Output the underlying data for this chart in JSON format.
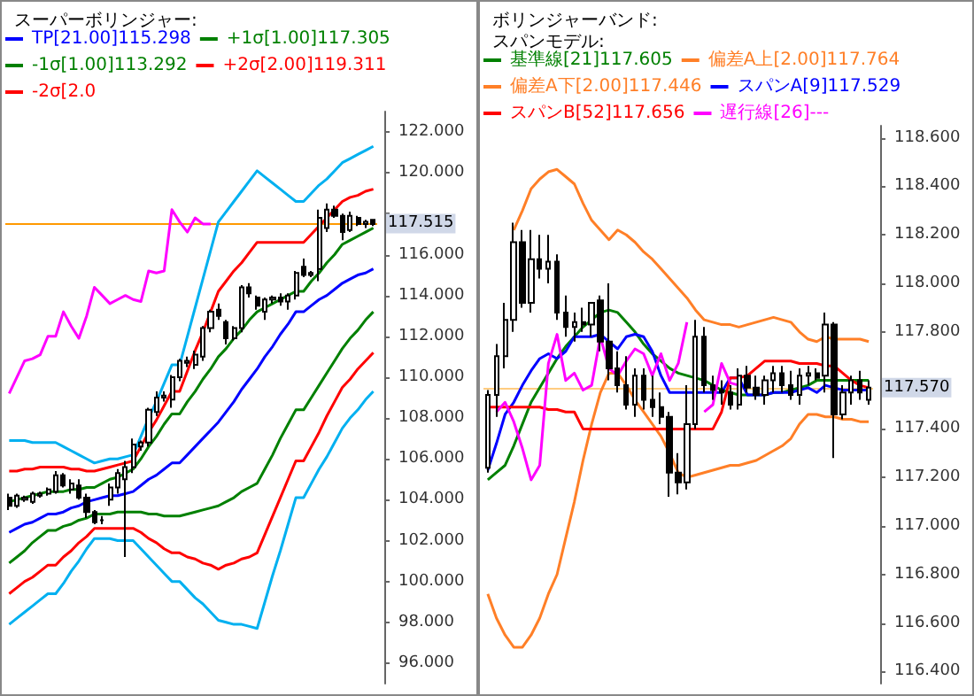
{
  "chart_data": [
    {
      "type": "candlestick",
      "title": "スーパーボリンジャー:",
      "categories": [
        null,
        null,
        null,
        null,
        null,
        null,
        null,
        null,
        null,
        null,
        null,
        null,
        null,
        null,
        null,
        null,
        null,
        null,
        null,
        null,
        null,
        null,
        null,
        null,
        null,
        null,
        null,
        null,
        null,
        null,
        null,
        null,
        null,
        null,
        null,
        null,
        null,
        null,
        null,
        null,
        null,
        null,
        null,
        null,
        null,
        null,
        null,
        null
      ],
      "ohlc": [
        [
          104.1,
          104.3,
          103.5,
          103.7
        ],
        [
          103.7,
          104.3,
          103.6,
          104.2
        ],
        [
          104.0,
          104.2,
          103.9,
          104.1
        ],
        [
          103.9,
          104.4,
          103.8,
          104.3
        ],
        [
          104.2,
          104.4,
          104.1,
          104.3
        ],
        [
          104.3,
          104.6,
          104.2,
          104.5
        ],
        [
          104.4,
          105.4,
          104.3,
          105.2
        ],
        [
          105.2,
          105.3,
          104.6,
          104.7
        ],
        [
          104.5,
          105.0,
          104.3,
          104.8
        ],
        [
          104.7,
          105.0,
          104.0,
          104.1
        ],
        [
          104.1,
          104.3,
          103.1,
          103.4
        ],
        [
          103.4,
          103.5,
          102.8,
          102.9
        ],
        [
          103.0,
          103.2,
          102.8,
          103.0
        ],
        [
          104.0,
          104.8,
          103.7,
          104.6
        ],
        [
          104.6,
          105.5,
          104.3,
          105.3
        ],
        [
          105.0,
          105.9,
          101.2,
          105.6
        ],
        [
          105.6,
          107.0,
          105.3,
          106.7
        ],
        [
          106.6,
          106.9,
          106.4,
          106.8
        ],
        [
          106.8,
          108.5,
          106.6,
          108.4
        ],
        [
          108.3,
          109.3,
          108.1,
          109.0
        ],
        [
          109.0,
          109.3,
          108.8,
          109.1
        ],
        [
          108.9,
          110.1,
          108.5,
          110.0
        ],
        [
          110.0,
          110.9,
          109.8,
          110.8
        ],
        [
          110.7,
          111.0,
          110.5,
          110.8
        ],
        [
          110.6,
          111.3,
          110.4,
          111.1
        ],
        [
          111.0,
          112.5,
          110.8,
          112.4
        ],
        [
          112.4,
          113.3,
          112.2,
          113.2
        ],
        [
          113.3,
          113.6,
          112.8,
          113.0
        ],
        [
          112.7,
          112.8,
          111.6,
          111.9
        ],
        [
          111.9,
          112.5,
          111.8,
          112.4
        ],
        [
          112.4,
          114.5,
          112.2,
          114.4
        ],
        [
          114.4,
          114.6,
          113.9,
          114.1
        ],
        [
          113.9,
          114.0,
          113.3,
          113.5
        ],
        [
          113.2,
          113.9,
          112.8,
          113.8
        ],
        [
          113.8,
          114.0,
          113.6,
          113.9
        ],
        [
          113.9,
          114.1,
          113.5,
          113.7
        ],
        [
          113.7,
          114.1,
          113.3,
          114.0
        ],
        [
          114.0,
          115.2,
          113.8,
          115.1
        ],
        [
          115.4,
          115.8,
          114.9,
          115.0
        ],
        [
          115.0,
          115.2,
          114.9,
          115.1
        ],
        [
          115.3,
          118.2,
          114.7,
          117.8
        ],
        [
          117.3,
          118.5,
          117.1,
          118.2
        ],
        [
          118.2,
          118.4,
          117.8,
          117.9
        ],
        [
          117.9,
          118.0,
          116.7,
          117.1
        ],
        [
          117.2,
          118.1,
          117.1,
          117.9
        ],
        [
          117.8,
          117.9,
          117.4,
          117.5
        ],
        [
          117.5,
          117.7,
          117.3,
          117.6
        ],
        [
          117.7,
          117.7,
          117.4,
          117.5
        ]
      ],
      "series": [
        {
          "type": "line",
          "name": "TP[21.00]115.298",
          "color": "#0000ff",
          "values": [
            102.4,
            102.6,
            102.8,
            102.9,
            103.1,
            103.3,
            103.3,
            103.4,
            103.6,
            103.7,
            103.9,
            104.0,
            104.1,
            104.2,
            104.2,
            104.3,
            104.4,
            104.7,
            105.0,
            105.2,
            105.5,
            105.8,
            105.8,
            106.2,
            106.6,
            107.0,
            107.4,
            107.8,
            108.3,
            108.8,
            109.4,
            109.9,
            110.4,
            111.0,
            111.5,
            112.1,
            112.6,
            113.2,
            113.2,
            113.5,
            113.8,
            114.0,
            114.3,
            114.6,
            114.8,
            115.0,
            115.1,
            115.3
          ]
        },
        {
          "type": "line",
          "name": "+1σ[1.00]117.305",
          "color": "#008000",
          "values": [
            103.9,
            104.0,
            104.1,
            104.2,
            104.3,
            104.4,
            104.4,
            104.4,
            104.5,
            104.5,
            104.6,
            104.6,
            104.8,
            105.0,
            105.1,
            105.3,
            105.5,
            106.0,
            106.6,
            107.1,
            107.7,
            108.2,
            108.2,
            108.8,
            109.3,
            109.9,
            110.4,
            111.0,
            111.4,
            111.9,
            112.3,
            112.8,
            113.2,
            113.4,
            113.6,
            113.8,
            114.0,
            114.2,
            114.2,
            114.7,
            115.1,
            115.6,
            116.0,
            116.5,
            116.7,
            116.9,
            117.1,
            117.3
          ]
        },
        {
          "type": "line",
          "name": "-1σ[1.00]113.292",
          "color": "#008000",
          "values": [
            100.9,
            101.2,
            101.5,
            101.9,
            102.2,
            102.5,
            102.5,
            102.7,
            102.8,
            103.0,
            103.1,
            103.3,
            103.3,
            103.3,
            103.4,
            103.4,
            103.4,
            103.4,
            103.3,
            103.3,
            103.2,
            103.2,
            103.2,
            103.3,
            103.4,
            103.5,
            103.6,
            103.7,
            103.9,
            104.1,
            104.4,
            104.6,
            104.8,
            105.5,
            106.2,
            107.0,
            107.7,
            108.4,
            108.4,
            109.0,
            109.6,
            110.2,
            110.8,
            111.4,
            111.9,
            112.3,
            112.8,
            113.2
          ]
        },
        {
          "type": "line",
          "name": "+2σ[2.00]119.311",
          "color": "#ff0000",
          "values": [
            105.4,
            105.4,
            105.5,
            105.5,
            105.6,
            105.6,
            105.6,
            105.6,
            105.5,
            105.5,
            105.4,
            105.4,
            105.5,
            105.6,
            105.7,
            105.8,
            105.9,
            106.6,
            107.3,
            107.9,
            108.6,
            109.3,
            109.3,
            110.3,
            111.3,
            112.2,
            113.2,
            114.2,
            114.7,
            115.2,
            115.6,
            116.1,
            116.6,
            116.6,
            116.6,
            116.6,
            116.6,
            116.6,
            116.6,
            117.0,
            117.4,
            117.8,
            118.2,
            118.6,
            118.8,
            118.9,
            119.1,
            119.2
          ]
        },
        {
          "type": "line",
          "name": "-2σ[2.0",
          "color": "#ff0000",
          "values": [
            99.4,
            99.7,
            100.0,
            100.2,
            100.5,
            100.8,
            100.8,
            101.2,
            101.5,
            101.9,
            102.2,
            102.6,
            102.6,
            102.6,
            102.6,
            102.6,
            102.6,
            102.4,
            102.1,
            101.9,
            101.6,
            101.4,
            101.4,
            101.2,
            101.1,
            100.9,
            100.8,
            100.6,
            100.8,
            100.9,
            101.1,
            101.2,
            101.4,
            102.3,
            103.2,
            104.1,
            105.0,
            105.9,
            105.9,
            106.6,
            107.3,
            108.1,
            108.8,
            109.5,
            109.9,
            110.4,
            110.8,
            111.2
          ]
        },
        {
          "type": "line",
          "color": "#00b0f0",
          "values": [
            106.9,
            106.9,
            106.9,
            106.8,
            106.8,
            106.8,
            106.8,
            106.6,
            106.4,
            106.2,
            106.0,
            105.8,
            105.9,
            106.0,
            106.0,
            106.1,
            106.2,
            107.1,
            108.0,
            108.8,
            109.7,
            110.6,
            110.6,
            112.0,
            113.4,
            114.8,
            116.2,
            117.6,
            118.1,
            118.6,
            119.1,
            119.6,
            120.1,
            119.8,
            119.5,
            119.2,
            118.9,
            118.6,
            118.6,
            119.0,
            119.4,
            119.7,
            120.1,
            120.5,
            120.7,
            120.9,
            121.1,
            121.3
          ]
        },
        {
          "type": "line",
          "color": "#00b0f0",
          "values": [
            97.9,
            98.2,
            98.5,
            98.8,
            99.1,
            99.4,
            99.4,
            99.9,
            100.5,
            101.0,
            101.6,
            102.1,
            102.1,
            102.1,
            102.0,
            102.0,
            102.0,
            101.6,
            101.2,
            100.8,
            100.4,
            100.0,
            100.0,
            99.6,
            99.2,
            98.9,
            98.5,
            98.1,
            98.0,
            97.9,
            97.9,
            97.8,
            97.7,
            99.0,
            100.3,
            101.5,
            102.8,
            104.1,
            104.1,
            104.8,
            105.5,
            106.1,
            106.8,
            107.5,
            108.0,
            108.4,
            108.9,
            109.3
          ]
        },
        {
          "type": "line",
          "color": "#ff00ff",
          "values": [
            109.2,
            110.0,
            110.8,
            110.9,
            111.1,
            112.0,
            112.0,
            113.2,
            112.5,
            111.9,
            113.0,
            114.4,
            114.0,
            113.6,
            113.8,
            114.0,
            113.8,
            113.7,
            115.2,
            115.1,
            115.2,
            118.2,
            117.6,
            117.1,
            117.8,
            117.5,
            117.5,
            null,
            null,
            null,
            null,
            null,
            null,
            null,
            null,
            null,
            null,
            null,
            null,
            null,
            null,
            null,
            null,
            null,
            null,
            null,
            null,
            null
          ]
        }
      ],
      "ylim": [
        95,
        123
      ],
      "yticks": [
        {
          "value": 96,
          "label": "96.000"
        },
        {
          "value": 98,
          "label": "98.000"
        },
        {
          "value": 100,
          "label": "100.000"
        },
        {
          "value": 102,
          "label": "102.000"
        },
        {
          "value": 104,
          "label": "104.000"
        },
        {
          "value": 106,
          "label": "106.000"
        },
        {
          "value": 108,
          "label": "108.000"
        },
        {
          "value": 110,
          "label": "110.000"
        },
        {
          "value": 112,
          "label": "112.000"
        },
        {
          "value": 114,
          "label": "114.000"
        },
        {
          "value": 116,
          "label": "116.000"
        },
        {
          "value": 118,
          "label": null
        },
        {
          "value": 120,
          "label": "120.000"
        },
        {
          "value": 122,
          "label": "122.000"
        }
      ],
      "ref_lines": [
        {
          "axis": "y",
          "value": 117.515,
          "label": "117.515",
          "color": "#ff9900"
        }
      ],
      "legend": "top",
      "tick_labels": "y",
      "line_style": "solid"
    },
    {
      "type": "candlestick",
      "title": "ボリンジャーバンド:",
      "subtitle": "スパンモデル:",
      "categories": [
        null,
        null,
        null,
        null,
        null,
        null,
        null,
        null,
        null,
        null,
        null,
        null,
        null,
        null,
        null,
        null,
        null,
        null,
        null,
        null,
        null,
        null,
        null,
        null,
        null,
        null,
        null,
        null,
        null,
        null,
        null,
        null,
        null,
        null,
        null,
        null,
        null,
        null,
        null,
        null,
        null,
        null,
        null,
        null,
        null
      ],
      "ohlc": [
        [
          117.24,
          117.56,
          117.22,
          117.54
        ],
        [
          117.54,
          117.75,
          117.45,
          117.7
        ],
        [
          117.7,
          117.92,
          117.65,
          117.85
        ],
        [
          117.85,
          118.25,
          117.8,
          118.17
        ],
        [
          118.17,
          118.22,
          117.9,
          117.92
        ],
        [
          117.92,
          118.22,
          117.88,
          118.1
        ],
        [
          118.1,
          118.2,
          118.02,
          118.06
        ],
        [
          118.06,
          118.2,
          118.0,
          118.09
        ],
        [
          118.09,
          118.12,
          117.85,
          117.88
        ],
        [
          117.88,
          117.95,
          117.78,
          117.82
        ],
        [
          117.82,
          117.88,
          117.76,
          117.84
        ],
        [
          117.84,
          117.9,
          117.8,
          117.83
        ],
        [
          117.83,
          117.92,
          117.78,
          117.92
        ],
        [
          117.93,
          117.95,
          117.72,
          117.76
        ],
        [
          117.76,
          118.0,
          117.6,
          117.65
        ],
        [
          117.65,
          117.72,
          117.55,
          117.58
        ],
        [
          117.58,
          117.7,
          117.48,
          117.5
        ],
        [
          117.5,
          117.65,
          117.45,
          117.62
        ],
        [
          117.62,
          117.65,
          117.48,
          117.52
        ],
        [
          117.52,
          117.62,
          117.45,
          117.49
        ],
        [
          117.49,
          117.55,
          117.42,
          117.45
        ],
        [
          117.45,
          117.47,
          117.12,
          117.22
        ],
        [
          117.22,
          117.3,
          117.13,
          117.18
        ],
        [
          117.18,
          117.58,
          117.15,
          117.42
        ],
        [
          117.42,
          117.85,
          117.4,
          117.78
        ],
        [
          117.78,
          117.82,
          117.55,
          117.58
        ],
        [
          117.58,
          117.62,
          117.52,
          117.56
        ],
        [
          117.56,
          117.6,
          117.5,
          117.55
        ],
        [
          117.55,
          117.58,
          117.48,
          117.5
        ],
        [
          117.5,
          117.65,
          117.48,
          117.62
        ],
        [
          117.62,
          117.66,
          117.55,
          117.57
        ],
        [
          117.57,
          117.62,
          117.52,
          117.54
        ],
        [
          117.54,
          117.62,
          117.5,
          117.6
        ],
        [
          117.6,
          117.66,
          117.55,
          117.63
        ],
        [
          117.63,
          117.66,
          117.55,
          117.58
        ],
        [
          117.58,
          117.64,
          117.52,
          117.54
        ],
        [
          117.54,
          117.65,
          117.5,
          117.62
        ],
        [
          117.62,
          117.66,
          117.58,
          117.63
        ],
        [
          117.63,
          117.65,
          117.6,
          117.61
        ],
        [
          117.62,
          117.88,
          117.55,
          117.83
        ],
        [
          117.83,
          117.84,
          117.28,
          117.46
        ],
        [
          117.46,
          117.58,
          117.44,
          117.55
        ],
        [
          117.55,
          117.62,
          117.5,
          117.6
        ],
        [
          117.6,
          117.64,
          117.52,
          117.55
        ],
        [
          117.52,
          117.6,
          117.5,
          117.57
        ]
      ],
      "series": [
        {
          "type": "line",
          "name": "基準線[21]117.605",
          "color": "#008000",
          "values": [
            117.19,
            117.22,
            117.25,
            117.33,
            117.42,
            117.51,
            117.57,
            117.63,
            117.69,
            117.74,
            117.78,
            117.82,
            117.85,
            117.88,
            117.89,
            117.88,
            117.84,
            117.8,
            117.75,
            117.71,
            117.68,
            117.65,
            117.63,
            117.62,
            117.61,
            117.6,
            117.58,
            117.56,
            117.55,
            117.54,
            117.54,
            117.54,
            117.54,
            117.55,
            117.55,
            117.56,
            117.57,
            117.58,
            117.6,
            117.6,
            117.6,
            117.6,
            117.6,
            117.6,
            117.6
          ]
        },
        {
          "type": "line",
          "name": "偏差A上[2.00]117.764",
          "color": "#ff7f27",
          "values": [
            null,
            null,
            null,
            118.22,
            118.3,
            118.39,
            118.43,
            118.46,
            118.47,
            118.44,
            118.41,
            118.33,
            118.26,
            118.22,
            118.18,
            118.22,
            118.2,
            118.17,
            118.13,
            118.1,
            118.06,
            118.02,
            117.98,
            117.94,
            117.89,
            117.85,
            117.84,
            117.83,
            117.83,
            117.82,
            117.83,
            117.84,
            117.85,
            117.86,
            117.85,
            117.84,
            117.8,
            117.77,
            117.76,
            117.78,
            117.77,
            117.77,
            117.77,
            117.77,
            117.76
          ]
        },
        {
          "type": "line",
          "name": "偏差A下[2.00]117.446",
          "color": "#ff7f27",
          "values": [
            116.72,
            116.62,
            116.55,
            116.5,
            116.5,
            116.55,
            116.62,
            116.72,
            116.8,
            116.95,
            117.1,
            117.27,
            117.42,
            117.55,
            117.63,
            117.63,
            117.58,
            117.52,
            117.47,
            117.42,
            117.37,
            117.3,
            117.22,
            117.2,
            117.21,
            117.22,
            117.23,
            117.24,
            117.25,
            117.25,
            117.26,
            117.27,
            117.29,
            117.31,
            117.33,
            117.36,
            117.42,
            117.46,
            117.46,
            117.45,
            117.45,
            117.44,
            117.44,
            117.43,
            117.43
          ]
        },
        {
          "type": "line",
          "name": "スパンA[9]117.529",
          "color": "#0000ff",
          "values": [
            117.23,
            117.34,
            117.46,
            117.51,
            117.58,
            117.64,
            117.69,
            117.71,
            117.69,
            117.72,
            117.78,
            117.78,
            117.78,
            117.79,
            117.76,
            117.73,
            117.78,
            117.79,
            117.78,
            117.72,
            117.62,
            117.55,
            117.55,
            117.55,
            117.55,
            117.55,
            117.55,
            117.55,
            117.61,
            117.61,
            117.54,
            117.54,
            117.54,
            117.55,
            117.55,
            117.55,
            117.56,
            117.57,
            117.55,
            117.58,
            117.57,
            117.56,
            117.56,
            117.56,
            117.56
          ]
        },
        {
          "type": "line",
          "name": "スパンB[52]117.656",
          "color": "#ff0000",
          "values": [
            117.49,
            117.49,
            117.49,
            117.49,
            117.49,
            117.49,
            117.49,
            117.48,
            117.48,
            117.47,
            117.47,
            117.4,
            117.4,
            117.4,
            117.4,
            117.4,
            117.4,
            117.4,
            117.4,
            117.4,
            117.4,
            117.4,
            117.4,
            117.4,
            117.4,
            117.4,
            117.4,
            117.47,
            117.61,
            117.61,
            117.62,
            117.65,
            117.68,
            117.68,
            117.68,
            117.68,
            117.67,
            117.67,
            117.67,
            117.66,
            117.66,
            117.63,
            117.6,
            117.58,
            117.57
          ]
        },
        {
          "type": "line",
          "name": "遅行線[26]---",
          "color": "#ff00ff",
          "values": [
            null,
            117.47,
            117.51,
            117.43,
            117.32,
            117.19,
            117.25,
            117.67,
            117.79,
            117.6,
            117.63,
            117.56,
            117.58,
            117.78,
            117.65,
            117.62,
            117.68,
            117.73,
            117.71,
            117.62,
            117.71,
            117.6,
            117.67,
            117.84,
            null,
            117.47,
            117.5,
            117.67,
            117.59,
            117.58,
            null,
            null,
            null,
            null,
            null,
            null,
            null,
            null,
            null,
            null,
            null,
            null,
            null,
            null,
            null
          ]
        }
      ],
      "ylim": [
        116.35,
        118.65
      ],
      "yticks": [
        {
          "value": 116.4,
          "label": "116.400"
        },
        {
          "value": 116.6,
          "label": "116.600"
        },
        {
          "value": 116.8,
          "label": "116.800"
        },
        {
          "value": 117,
          "label": "117.000"
        },
        {
          "value": 117.2,
          "label": "117.200"
        },
        {
          "value": 117.4,
          "label": "117.400"
        },
        {
          "value": 117.6,
          "label": null
        },
        {
          "value": 117.8,
          "label": "117.800"
        },
        {
          "value": 118,
          "label": "118.000"
        },
        {
          "value": 118.2,
          "label": "118.200"
        },
        {
          "value": 118.4,
          "label": "118.400"
        },
        {
          "value": 118.6,
          "label": "118.600"
        }
      ],
      "ref_lines": [
        {
          "axis": "y",
          "value": 117.57,
          "label": "117.570",
          "color": "#ffcc80"
        }
      ],
      "legend": "top",
      "tick_labels": "y",
      "line_style": "solid"
    }
  ]
}
